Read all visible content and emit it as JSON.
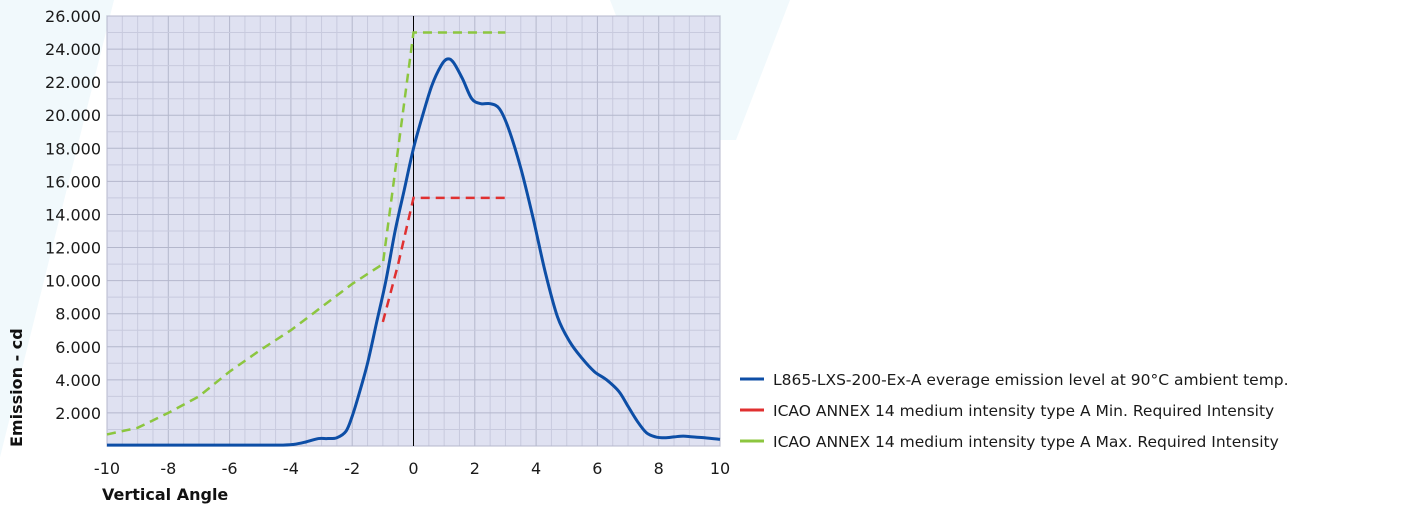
{
  "chart_data": {
    "type": "line",
    "title": "",
    "xlabel": "Vertical Angle",
    "ylabel": "Emission - cd",
    "xlim": [
      -10,
      10
    ],
    "ylim": [
      0,
      26000
    ],
    "x_ticks": [
      -10,
      -8,
      -6,
      -4,
      -2,
      0,
      2,
      4,
      6,
      8,
      10
    ],
    "x_tick_labels": [
      "-10",
      "-8",
      "-6",
      "-4",
      "-2",
      "0",
      "2",
      "4",
      "6",
      "8",
      "10"
    ],
    "y_ticks": [
      2000,
      4000,
      6000,
      8000,
      10000,
      12000,
      14000,
      16000,
      18000,
      20000,
      22000,
      24000,
      26000
    ],
    "y_tick_labels": [
      "2.000",
      "4.000",
      "6.000",
      "8.000",
      "10.000",
      "12.000",
      "14.000",
      "16.000",
      "18.000",
      "20.000",
      "22.000",
      "24.000",
      "26.000"
    ],
    "grid": true,
    "legend_position": "right",
    "series": [
      {
        "name": "L865-LXS-200-Ex-A everage emission level at 90°C ambient temp.",
        "color": "#0d4ea6",
        "style": "solid",
        "x": [
          -10,
          -8,
          -6,
          -4.4,
          -3.9,
          -3.5,
          -3.1,
          -2.8,
          -2.5,
          -2.2,
          -2.0,
          -1.8,
          -1.5,
          -1.2,
          -0.9,
          -0.6,
          -0.3,
          0,
          0.3,
          0.6,
          0.9,
          1.1,
          1.3,
          1.6,
          1.9,
          2.2,
          2.5,
          2.8,
          3.1,
          3.5,
          3.9,
          4.3,
          4.7,
          5.1,
          5.5,
          5.9,
          6.3,
          6.7,
          7.0,
          7.3,
          7.6,
          7.9,
          8.2,
          8.5,
          8.8,
          9.1,
          9.5,
          10
        ],
        "y": [
          50,
          50,
          50,
          50,
          100,
          250,
          450,
          450,
          500,
          900,
          1800,
          3000,
          5000,
          7500,
          10000,
          13000,
          15500,
          18000,
          20000,
          21800,
          23000,
          23400,
          23200,
          22200,
          21000,
          20700,
          20700,
          20400,
          19200,
          16800,
          13800,
          10500,
          7800,
          6300,
          5300,
          4500,
          4000,
          3300,
          2400,
          1500,
          800,
          550,
          500,
          550,
          600,
          550,
          500,
          400
        ]
      },
      {
        "name": "ICAO ANNEX 14 medium intensity type A Min. Required Intensity",
        "color": "#e03030",
        "style": "dashed",
        "x": [
          -1,
          -0.5,
          0,
          3
        ],
        "y": [
          7500,
          11000,
          15000,
          15000
        ]
      },
      {
        "name": "ICAO ANNEX 14 medium intensity type A Max. Required Intensity",
        "color": "#8cc63f",
        "style": "dashed",
        "x": [
          -10,
          -9,
          -8,
          -7,
          -6,
          -5,
          -4,
          -3,
          -2,
          -1,
          0,
          3
        ],
        "y": [
          700,
          1100,
          2000,
          3000,
          4500,
          5800,
          7000,
          8400,
          9800,
          11000,
          25000,
          25000
        ]
      }
    ]
  }
}
